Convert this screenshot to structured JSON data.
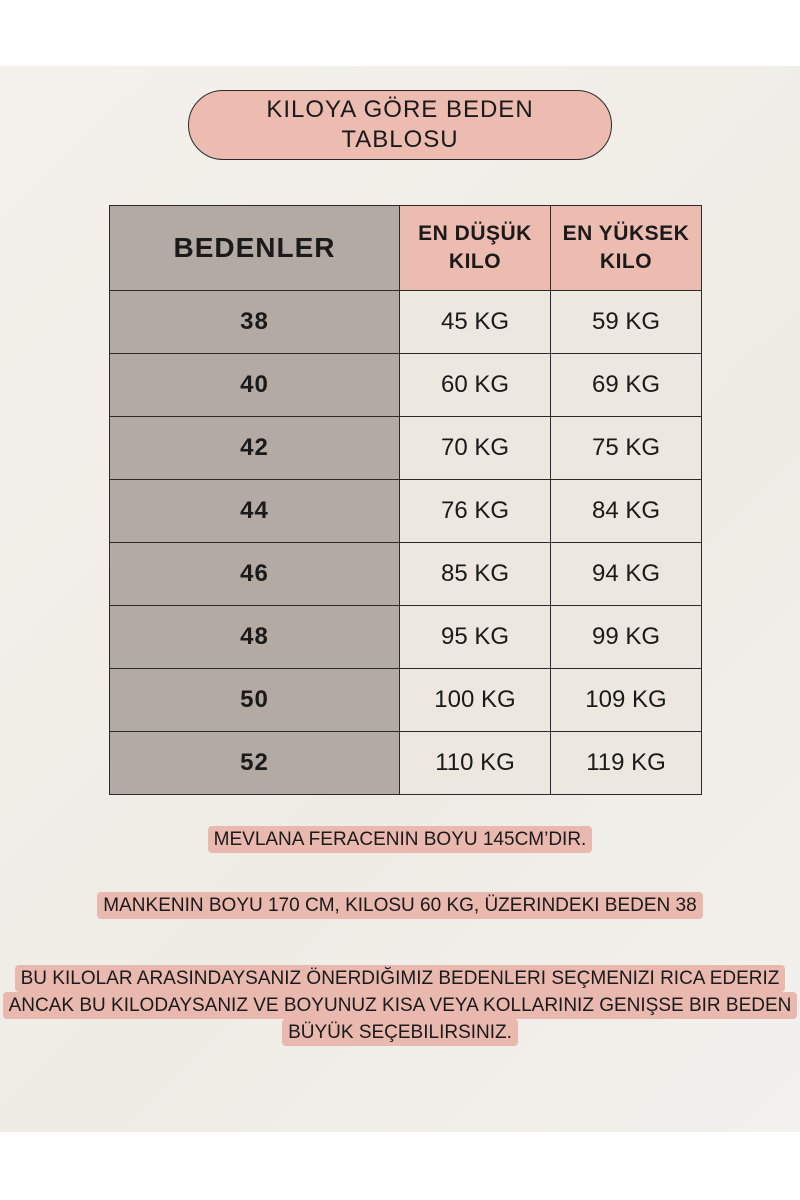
{
  "title": "KILOYA GÖRE BEDEN TABLOSU",
  "table": {
    "headers": [
      "BEDENLER",
      "EN DÜŞÜK KILO",
      "EN YÜKSEK KILO"
    ],
    "rows": [
      [
        "38",
        "45 KG",
        "59 KG"
      ],
      [
        "40",
        "60 KG",
        "69 KG"
      ],
      [
        "42",
        "70 KG",
        "75 KG"
      ],
      [
        "44",
        "76 KG",
        "84 KG"
      ],
      [
        "46",
        "85 KG",
        "94 KG"
      ],
      [
        "48",
        "95 KG",
        "99 KG"
      ],
      [
        "50",
        "100 KG",
        "109 KG"
      ],
      [
        "52",
        "110 KG",
        "119 KG"
      ]
    ]
  },
  "notes": [
    "MEVLANA FERACENIN BOYU 145CM’DIR.",
    "MANKENIN BOYU 170 CM, KILOSU 60 KG, ÜZERINDEKI BEDEN 38",
    "BU KILOLAR ARASINDAYSANIZ ÖNERDIĞIMIZ BEDENLERI SEÇMENIZI RICA EDERIZ ANCAK BU KILODAYSANIZ VE BOYUNUZ KISA VEYA KOLLARINIZ GENIŞSE BIR BEDEN BÜYÜK SEÇEBILIRSINIZ."
  ],
  "colors": {
    "pink": "#edbcb1",
    "gray": "#b3aaa3",
    "cell": "#ece8df",
    "background": "#f1eee8"
  }
}
